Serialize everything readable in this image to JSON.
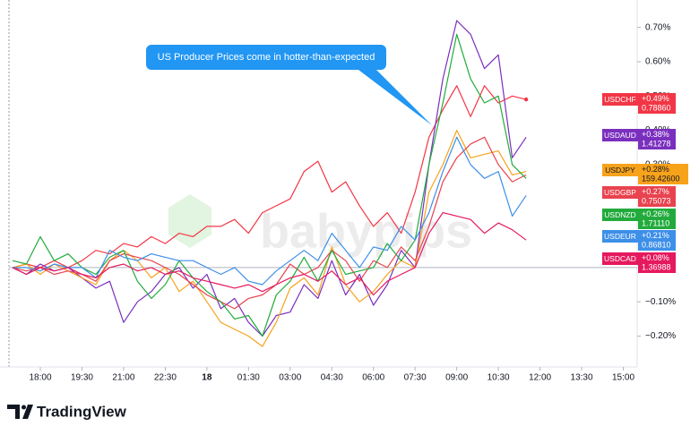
{
  "chart_data": {
    "type": "line",
    "annotation": "US Producer Prices come in hotter-than-expected",
    "watermark": "babypips",
    "brand": "TradingView",
    "x": [
      -1,
      -0.5,
      0,
      0.5,
      1,
      1.5,
      2,
      2.5,
      3,
      3.5,
      4,
      4.5,
      5,
      5.5,
      6,
      6.5,
      7,
      7.5,
      8,
      8.5,
      9,
      9.5,
      10,
      10.5,
      11,
      11.5,
      12,
      12.5,
      13,
      13.5,
      14,
      14.5,
      15,
      15.5,
      16,
      16.5,
      17,
      17.5
    ],
    "xlim": [
      -1.13,
      21.5
    ],
    "xticks": [
      {
        "value": 0,
        "label": "18:00"
      },
      {
        "value": 1.5,
        "label": "19:30"
      },
      {
        "value": 3,
        "label": "21:00"
      },
      {
        "value": 4.5,
        "label": "22:30"
      },
      {
        "value": 6,
        "label": "18"
      },
      {
        "value": 7.5,
        "label": "01:30"
      },
      {
        "value": 9,
        "label": "03:00"
      },
      {
        "value": 10.5,
        "label": "04:30"
      },
      {
        "value": 12,
        "label": "06:00"
      },
      {
        "value": 13.5,
        "label": "07:30"
      },
      {
        "value": 15,
        "label": "09:00"
      },
      {
        "value": 16.5,
        "label": "10:30"
      },
      {
        "value": 18,
        "label": "12:00"
      },
      {
        "value": 19.5,
        "label": "13:30"
      },
      {
        "value": 21,
        "label": "15:00"
      }
    ],
    "ylim": [
      -0.29,
      0.78
    ],
    "yticks": [
      {
        "value": 0.7,
        "label": "0.70%"
      },
      {
        "value": 0.6,
        "label": "0.60%"
      },
      {
        "value": 0.5,
        "label": "0.50%"
      },
      {
        "value": 0.4,
        "label": "0.40%"
      },
      {
        "value": 0.3,
        "label": "0.30%"
      },
      {
        "value": -0.1,
        "label": "−0.10%"
      },
      {
        "value": -0.2,
        "label": "−0.20%"
      }
    ],
    "zero_line": 0,
    "series": [
      {
        "name": "USDCHF",
        "color": "#f23645",
        "change": "+0.49%",
        "price": "0.78860",
        "end_dot": true,
        "values": [
          0,
          0.01,
          0,
          0.02,
          0,
          0.02,
          0.05,
          0.04,
          0.07,
          0.06,
          0.09,
          0.07,
          0.1,
          0.09,
          0.12,
          0.12,
          0.14,
          0.1,
          0.16,
          0.18,
          0.2,
          0.28,
          0.31,
          0.22,
          0.25,
          0.18,
          0.12,
          0.16,
          0.1,
          0.22,
          0.38,
          0.46,
          0.53,
          0.44,
          0.53,
          0.48,
          0.5,
          0.49
        ]
      },
      {
        "name": "USDAUD",
        "color": "#7b2fbe",
        "change": "+0.38%",
        "price": "1.41278",
        "values": [
          0,
          -0.02,
          0.01,
          -0.01,
          0,
          -0.03,
          -0.06,
          -0.04,
          -0.16,
          -0.1,
          -0.07,
          -0.02,
          0,
          -0.06,
          -0.02,
          -0.12,
          -0.09,
          -0.16,
          -0.2,
          -0.14,
          -0.13,
          -0.05,
          -0.09,
          0.02,
          -0.08,
          -0.02,
          -0.11,
          -0.05,
          0.05,
          0,
          0.3,
          0.55,
          0.72,
          0.68,
          0.58,
          0.62,
          0.32,
          0.38
        ]
      },
      {
        "name": "USDJPY",
        "color": "#f7a21b",
        "change": "+0.28%",
        "price": "159.42600",
        "values": [
          0,
          0.01,
          -0.02,
          0.01,
          -0.01,
          -0.03,
          -0.05,
          0.02,
          0.05,
          0.02,
          -0.03,
          0,
          -0.07,
          -0.04,
          -0.1,
          -0.16,
          -0.18,
          -0.2,
          -0.23,
          -0.16,
          -0.06,
          -0.03,
          -0.08,
          0.06,
          -0.05,
          -0.1,
          -0.07,
          -0.02,
          0.02,
          0,
          0.22,
          0.3,
          0.4,
          0.32,
          0.33,
          0.34,
          0.27,
          0.28
        ]
      },
      {
        "name": "USDGBP",
        "color": "#e8434f",
        "change": "+0.27%",
        "price": "0.75073",
        "values": [
          0,
          -0.01,
          0,
          -0.02,
          -0.01,
          -0.02,
          -0.04,
          0.02,
          0.04,
          0.03,
          0.02,
          0,
          -0.02,
          -0.05,
          -0.08,
          -0.1,
          -0.12,
          -0.09,
          -0.08,
          -0.05,
          0.01,
          -0.02,
          0,
          0.05,
          0.02,
          -0.04,
          0.02,
          0,
          0.06,
          0.02,
          0.12,
          0.25,
          0.32,
          0.36,
          0.38,
          0.3,
          0.25,
          0.27
        ]
      },
      {
        "name": "USDNZD",
        "color": "#22ab3c",
        "change": "+0.26%",
        "price": "1.71110",
        "values": [
          0.02,
          0.01,
          0.09,
          0.02,
          0.04,
          0,
          -0.02,
          0.03,
          0.05,
          -0.04,
          -0.09,
          -0.05,
          0.02,
          -0.03,
          -0.07,
          -0.1,
          -0.15,
          -0.14,
          -0.2,
          -0.08,
          -0.04,
          0.03,
          -0.04,
          0.05,
          -0.02,
          -0.01,
          0,
          0.07,
          0.02,
          0.08,
          0.3,
          0.48,
          0.68,
          0.55,
          0.48,
          0.5,
          0.3,
          0.26
        ]
      },
      {
        "name": "USDEUR",
        "color": "#3d8fe8",
        "change": "+0.21%",
        "price": "0.86810",
        "values": [
          0,
          0,
          -0.01,
          0.01,
          0,
          0,
          -0.03,
          0.05,
          0.03,
          0.02,
          0.04,
          0.03,
          0.02,
          0.02,
          0,
          -0.02,
          0,
          -0.04,
          -0.05,
          -0.01,
          0.02,
          0.05,
          0.02,
          0.1,
          0.05,
          0,
          0.06,
          0.05,
          0.12,
          0.08,
          0.16,
          0.28,
          0.38,
          0.3,
          0.26,
          0.28,
          0.15,
          0.21
        ]
      },
      {
        "name": "USDCAD",
        "color": "#e5195e",
        "change": "+0.08%",
        "price": "1.36988",
        "values": [
          0,
          -0.02,
          0,
          -0.01,
          0,
          -0.02,
          -0.03,
          0,
          0.01,
          -0.01,
          0,
          -0.02,
          -0.01,
          -0.03,
          -0.04,
          -0.05,
          -0.06,
          -0.05,
          -0.07,
          -0.05,
          -0.03,
          -0.02,
          -0.04,
          -0.01,
          -0.05,
          -0.03,
          -0.08,
          -0.04,
          -0.02,
          0,
          0.1,
          0.16,
          0.15,
          0.14,
          0.1,
          0.13,
          0.11,
          0.08
        ]
      }
    ]
  }
}
